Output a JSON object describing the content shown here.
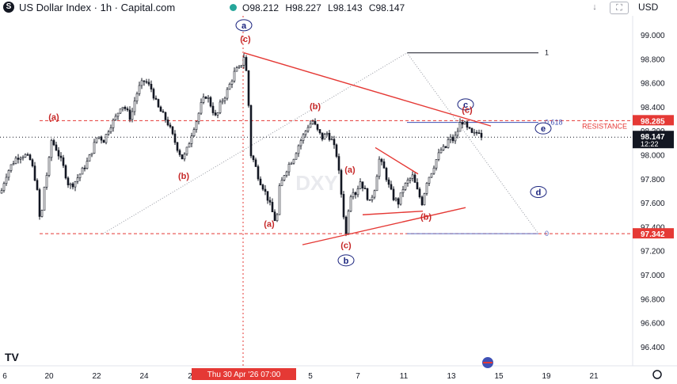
{
  "header": {
    "logo_letter": "S",
    "title": "US Dollar Index · 1h · Capital.com",
    "ohlc": {
      "open": "O98.212",
      "high": "H98.227",
      "low": "L98.143",
      "close": "C98.147"
    },
    "buttons": {
      "down_arrow": "↓",
      "fullscreen": "⛶",
      "currency": "USD"
    }
  },
  "chart_data": {
    "type": "candlestick",
    "symbol": "USD",
    "watermark": "DXY",
    "y_axis": {
      "ylim": [
        96.2,
        99.15
      ],
      "ticks": [
        99.0,
        98.8,
        98.6,
        98.4,
        98.2,
        98.0,
        97.8,
        97.6,
        97.4,
        97.2,
        97.0,
        96.8,
        96.6,
        96.4
      ],
      "tick_labels": [
        "99.000",
        "98.800",
        "98.600",
        "98.400",
        "98.200",
        "98.000",
        "97.800",
        "97.600",
        "97.400",
        "97.200",
        "97.000",
        "96.800",
        "96.600",
        "96.400"
      ]
    },
    "x_axis": {
      "tick_labels": [
        "6",
        "20",
        "22",
        "24",
        "2",
        "5",
        "7",
        "11",
        "13",
        "15",
        "19",
        "21"
      ],
      "tick_x": [
        6,
        62,
        122,
        182,
        240,
        392,
        452,
        510,
        570,
        630,
        690,
        750
      ],
      "crosshair_label": "Thu 30 Apr '26   07:00"
    },
    "last_price": {
      "value": 98.147,
      "label": "98.147",
      "countdown": "12:22"
    },
    "key_levels": [
      {
        "name": "resistance",
        "value": 98.285,
        "label": "98.285",
        "text": "RESISTANCE",
        "color": "#e53935"
      },
      {
        "name": "support",
        "value": 97.342,
        "label": "97.342",
        "color": "#e53935"
      }
    ],
    "fibonacci": [
      {
        "ratio": "1",
        "value": 98.85
      },
      {
        "ratio": "0.618",
        "value": 98.27
      },
      {
        "ratio": "0",
        "value": 97.342
      }
    ],
    "price_path": [
      [
        0,
        97.68
      ],
      [
        6,
        97.82
      ],
      [
        12,
        97.9
      ],
      [
        20,
        97.98
      ],
      [
        30,
        98.0
      ],
      [
        38,
        97.95
      ],
      [
        44,
        97.78
      ],
      [
        48,
        97.6
      ],
      [
        50,
        97.36
      ],
      [
        54,
        97.7
      ],
      [
        60,
        97.9
      ],
      [
        64,
        98.12
      ],
      [
        70,
        98.05
      ],
      [
        78,
        97.92
      ],
      [
        86,
        97.74
      ],
      [
        92,
        97.76
      ],
      [
        98,
        97.82
      ],
      [
        104,
        97.88
      ],
      [
        110,
        97.95
      ],
      [
        116,
        98.05
      ],
      [
        122,
        98.16
      ],
      [
        130,
        98.12
      ],
      [
        138,
        98.24
      ],
      [
        146,
        98.32
      ],
      [
        152,
        98.42
      ],
      [
        158,
        98.38
      ],
      [
        164,
        98.3
      ],
      [
        170,
        98.48
      ],
      [
        176,
        98.58
      ],
      [
        182,
        98.62
      ],
      [
        190,
        98.55
      ],
      [
        198,
        98.4
      ],
      [
        206,
        98.32
      ],
      [
        212,
        98.25
      ],
      [
        218,
        98.14
      ],
      [
        224,
        98.04
      ],
      [
        230,
        97.96
      ],
      [
        236,
        98.06
      ],
      [
        242,
        98.2
      ],
      [
        248,
        98.3
      ],
      [
        254,
        98.44
      ],
      [
        260,
        98.5
      ],
      [
        266,
        98.4
      ],
      [
        272,
        98.3
      ],
      [
        278,
        98.44
      ],
      [
        284,
        98.5
      ],
      [
        290,
        98.6
      ],
      [
        296,
        98.7
      ],
      [
        302,
        98.72
      ],
      [
        308,
        98.84
      ],
      [
        312,
        98.55
      ],
      [
        316,
        98.0
      ],
      [
        320,
        97.94
      ],
      [
        326,
        97.8
      ],
      [
        332,
        97.72
      ],
      [
        338,
        97.62
      ],
      [
        344,
        97.5
      ],
      [
        348,
        97.42
      ],
      [
        352,
        97.72
      ],
      [
        358,
        97.84
      ],
      [
        364,
        97.92
      ],
      [
        370,
        97.98
      ],
      [
        376,
        98.08
      ],
      [
        382,
        98.16
      ],
      [
        388,
        98.24
      ],
      [
        394,
        98.28
      ],
      [
        400,
        98.2
      ],
      [
        406,
        98.14
      ],
      [
        412,
        98.18
      ],
      [
        418,
        98.12
      ],
      [
        424,
        98.0
      ],
      [
        428,
        97.8
      ],
      [
        432,
        97.55
      ],
      [
        436,
        97.34
      ],
      [
        440,
        97.62
      ],
      [
        444,
        97.72
      ],
      [
        448,
        97.68
      ],
      [
        454,
        97.78
      ],
      [
        460,
        97.7
      ],
      [
        466,
        97.6
      ],
      [
        472,
        97.72
      ],
      [
        478,
        97.96
      ],
      [
        484,
        97.88
      ],
      [
        490,
        97.74
      ],
      [
        496,
        97.64
      ],
      [
        502,
        97.6
      ],
      [
        508,
        97.72
      ],
      [
        514,
        97.78
      ],
      [
        520,
        97.82
      ],
      [
        526,
        97.7
      ],
      [
        532,
        97.6
      ],
      [
        538,
        97.78
      ],
      [
        544,
        97.86
      ],
      [
        550,
        97.96
      ],
      [
        556,
        98.04
      ],
      [
        562,
        98.06
      ],
      [
        566,
        98.14
      ],
      [
        572,
        98.12
      ],
      [
        576,
        98.18
      ],
      [
        580,
        98.26
      ],
      [
        584,
        98.28
      ],
      [
        588,
        98.22
      ],
      [
        592,
        98.2
      ],
      [
        596,
        98.16
      ],
      [
        600,
        98.18
      ],
      [
        604,
        98.2
      ],
      [
        608,
        98.15
      ]
    ],
    "elliott_labels": [
      {
        "text": "(a)",
        "x": 68,
        "y": 98.29,
        "style": "red"
      },
      {
        "text": "(b)",
        "x": 232,
        "y": 97.8,
        "style": "red"
      },
      {
        "text": "(c)",
        "x": 310,
        "y": 98.94,
        "style": "red"
      },
      {
        "text": "a",
        "x": 308,
        "y": 99.08,
        "style": "circle"
      },
      {
        "text": "(a)",
        "x": 340,
        "y": 97.4,
        "style": "red"
      },
      {
        "text": "(b)",
        "x": 398,
        "y": 98.38,
        "style": "red"
      },
      {
        "text": "(a)",
        "x": 442,
        "y": 97.85,
        "style": "red"
      },
      {
        "text": "(c)",
        "x": 437,
        "y": 97.22,
        "style": "red"
      },
      {
        "text": "b",
        "x": 437,
        "y": 97.12,
        "style": "circle"
      },
      {
        "text": "(b)",
        "x": 538,
        "y": 97.46,
        "style": "red"
      },
      {
        "text": "c",
        "x": 588,
        "y": 98.42,
        "style": "circle"
      },
      {
        "text": "(c)",
        "x": 590,
        "y": 98.35,
        "style": "red"
      },
      {
        "text": "e",
        "x": 686,
        "y": 98.22,
        "style": "circle"
      },
      {
        "text": "d",
        "x": 680,
        "y": 97.69,
        "style": "circle"
      }
    ],
    "trend_lines": [
      {
        "x1": 308,
        "y1": 98.85,
        "x2": 620,
        "y2": 98.24
      },
      {
        "x1": 382,
        "y1": 97.25,
        "x2": 588,
        "y2": 97.56
      },
      {
        "x1": 474,
        "y1": 98.06,
        "x2": 528,
        "y2": 97.84
      },
      {
        "x1": 458,
        "y1": 97.5,
        "x2": 534,
        "y2": 97.53
      }
    ],
    "dotted_lines": [
      {
        "x1": 130,
        "y1": 97.342,
        "x2": 514,
        "y2": 98.85
      },
      {
        "x1": 514,
        "y1": 98.85,
        "x2": 680,
        "y2": 97.342
      }
    ],
    "fib_line_range": [
      514,
      680
    ],
    "crosshair_x": 307,
    "last_price_line_color": "#131722"
  },
  "footer": {
    "tv_logo": "TV",
    "settings_icon": "gear-icon",
    "event_icon": "flag-icon"
  }
}
